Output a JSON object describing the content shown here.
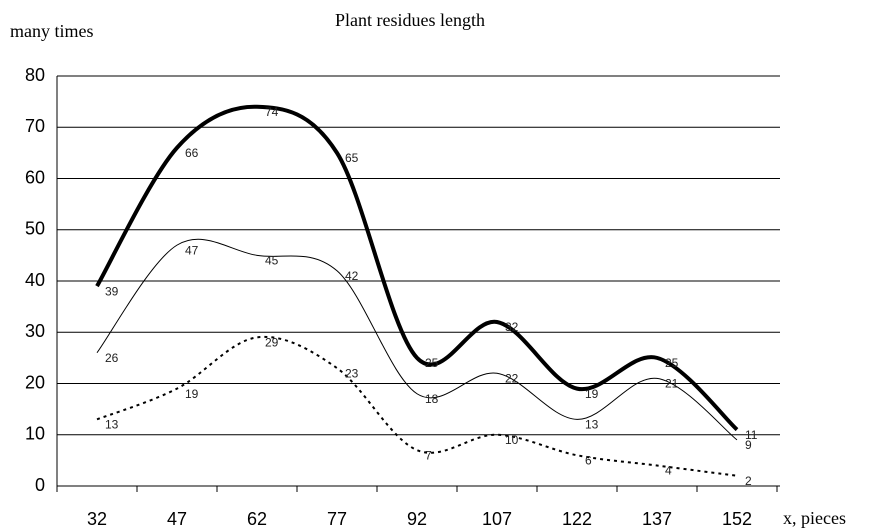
{
  "chart_data": {
    "type": "line",
    "title": "Plant residues length",
    "ylabel": "many times",
    "xlabel": "x, pieces",
    "categories": [
      "32",
      "47",
      "62",
      "77",
      "92",
      "107",
      "122",
      "137",
      "152"
    ],
    "series": [
      {
        "color": "#000000",
        "style": "bold",
        "values": [
          39,
          66,
          74,
          65,
          25,
          32,
          19,
          25,
          11
        ]
      },
      {
        "color": "#000000",
        "style": "thin",
        "values": [
          26,
          47,
          45,
          42,
          18,
          22,
          13,
          21,
          9
        ]
      },
      {
        "color": "#000000",
        "style": "dotted",
        "values": [
          13,
          19,
          29,
          23,
          7,
          10,
          6,
          4,
          2
        ]
      }
    ],
    "ylim": [
      0,
      80
    ],
    "yticks": [
      0,
      10,
      20,
      30,
      40,
      50,
      60,
      70,
      80
    ],
    "grid": true,
    "data_labels": true
  }
}
